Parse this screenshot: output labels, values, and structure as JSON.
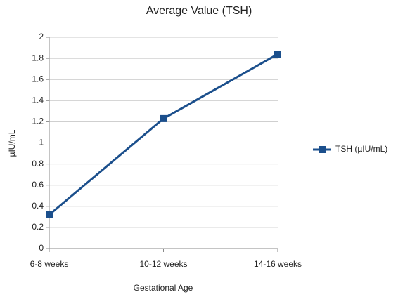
{
  "chart_data": {
    "type": "line",
    "title": "Average Value (TSH)",
    "x_label": "Gestational Age",
    "y_label": "µIU/mL",
    "categories": [
      "6-8 weeks",
      "10-12 weeks",
      "14-16 weeks"
    ],
    "series": [
      {
        "name": "TSH  (µIU/mL)",
        "color": "#1b4f8c",
        "values": [
          0.32,
          1.23,
          1.84
        ]
      }
    ],
    "ylim": [
      0,
      2
    ],
    "yticks": [
      0,
      0.2,
      0.4,
      0.6,
      0.8,
      1,
      1.2,
      1.4,
      1.6,
      1.8,
      2
    ],
    "grid": true,
    "legend": "right"
  }
}
